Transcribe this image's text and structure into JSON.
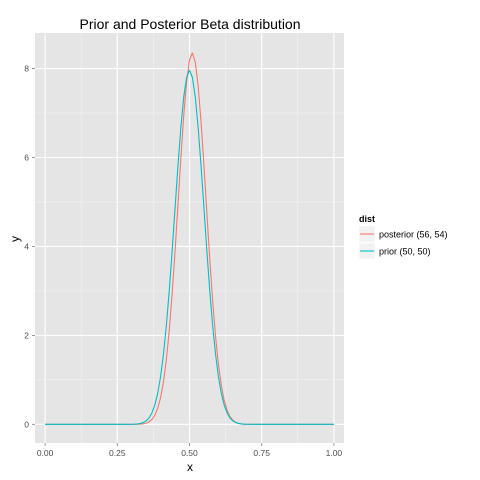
{
  "chart_data": {
    "type": "line",
    "title": "Prior and Posterior Beta distribution",
    "xlabel": "x",
    "ylabel": "y",
    "xlim": [
      -0.035,
      1.035
    ],
    "ylim": [
      -0.42,
      8.8
    ],
    "x_ticks": [
      0.0,
      0.25,
      0.5,
      0.75,
      1.0
    ],
    "x_tick_labels": [
      "0.00",
      "0.25",
      "0.50",
      "0.75",
      "1.00"
    ],
    "y_ticks": [
      0,
      2,
      4,
      6,
      8
    ],
    "y_tick_labels": [
      "0",
      "2",
      "4",
      "6",
      "8"
    ],
    "grid": true,
    "legend": {
      "title": "dist",
      "position": "right"
    },
    "series": [
      {
        "name": "posterior (56, 54)",
        "alpha": 56,
        "beta": 54,
        "color": "#F8766D"
      },
      {
        "name": "prior (50, 50)",
        "alpha": 50,
        "beta": 50,
        "color": "#00BFC4"
      }
    ]
  }
}
